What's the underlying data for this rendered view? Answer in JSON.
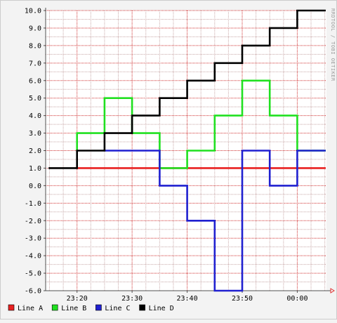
{
  "watermark": "RRDTOOL / TOBI OETIKER",
  "colors": {
    "background": "#f3f3f3",
    "plot_background": "#ffffff",
    "minor_grid": "#c8a8a8",
    "major_grid": "#d03030",
    "axis": "#505050",
    "text": "#000000",
    "arrow": "#e03030"
  },
  "chart_data": {
    "type": "line",
    "line_style": "step",
    "x_unit": "minutes after 23:00",
    "xlim": [
      14.3,
      65.3
    ],
    "ylim": [
      -6,
      10
    ],
    "x_ticks": [
      {
        "value": 20,
        "label": "23:20"
      },
      {
        "value": 30,
        "label": "23:30"
      },
      {
        "value": 40,
        "label": "23:40"
      },
      {
        "value": 50,
        "label": "23:50"
      },
      {
        "value": 60,
        "label": "00:00"
      }
    ],
    "y_ticks": [
      {
        "value": 10,
        "label": "10.0"
      },
      {
        "value": 9,
        "label": "9.0"
      },
      {
        "value": 8,
        "label": "8.0"
      },
      {
        "value": 7,
        "label": "7.0"
      },
      {
        "value": 6,
        "label": "6.0"
      },
      {
        "value": 5,
        "label": "5.0"
      },
      {
        "value": 4,
        "label": "4.0"
      },
      {
        "value": 3,
        "label": "3.0"
      },
      {
        "value": 2,
        "label": "2.0"
      },
      {
        "value": 1,
        "label": "1.0"
      },
      {
        "value": 0,
        "label": "0.0"
      },
      {
        "value": -1,
        "label": "-1.0"
      },
      {
        "value": -2,
        "label": "-2.0"
      },
      {
        "value": -3,
        "label": "-3.0"
      },
      {
        "value": -4,
        "label": "-4.0"
      },
      {
        "value": -5,
        "label": "-5.0"
      },
      {
        "value": -6,
        "label": "-6.0"
      }
    ],
    "grid": true,
    "legend_position": "bottom",
    "series": [
      {
        "name": "Line A",
        "color": "#e82020",
        "points": [
          [
            20,
            1
          ],
          [
            65,
            1
          ]
        ]
      },
      {
        "name": "Line B",
        "color": "#20e020",
        "points": [
          [
            20,
            2
          ],
          [
            20,
            3
          ],
          [
            25,
            3
          ],
          [
            25,
            5
          ],
          [
            30,
            5
          ],
          [
            30,
            3
          ],
          [
            35,
            3
          ],
          [
            35,
            1
          ],
          [
            40,
            1
          ],
          [
            40,
            2
          ],
          [
            45,
            2
          ],
          [
            45,
            4
          ],
          [
            50,
            4
          ],
          [
            50,
            6
          ],
          [
            55,
            6
          ],
          [
            55,
            4
          ],
          [
            60,
            4
          ],
          [
            60,
            2
          ],
          [
            65,
            2
          ]
        ]
      },
      {
        "name": "Line C",
        "color": "#2020d0",
        "points": [
          [
            25,
            2
          ],
          [
            35,
            2
          ],
          [
            35,
            0
          ],
          [
            40,
            0
          ],
          [
            40,
            -2
          ],
          [
            45,
            -2
          ],
          [
            45,
            -6
          ],
          [
            50,
            -6
          ],
          [
            50,
            2
          ],
          [
            55,
            2
          ],
          [
            55,
            0
          ],
          [
            60,
            0
          ],
          [
            60,
            2
          ],
          [
            65,
            2
          ]
        ]
      },
      {
        "name": "Line D",
        "color": "#000000",
        "points": [
          [
            15,
            1
          ],
          [
            20,
            1
          ],
          [
            20,
            2
          ],
          [
            25,
            2
          ],
          [
            25,
            3
          ],
          [
            30,
            3
          ],
          [
            30,
            4
          ],
          [
            35,
            4
          ],
          [
            35,
            5
          ],
          [
            40,
            5
          ],
          [
            40,
            6
          ],
          [
            45,
            6
          ],
          [
            45,
            7
          ],
          [
            50,
            7
          ],
          [
            50,
            8
          ],
          [
            55,
            8
          ],
          [
            55,
            9
          ],
          [
            60,
            9
          ],
          [
            60,
            10
          ],
          [
            65,
            10
          ]
        ]
      }
    ]
  }
}
